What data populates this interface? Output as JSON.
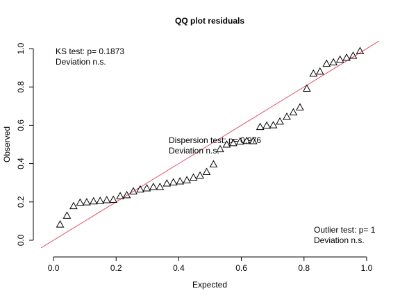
{
  "chart_data": {
    "type": "scatter",
    "title": "QQ plot residuals",
    "xlabel": "Expected",
    "ylabel": "Observed",
    "xlim": [
      -0.04,
      1.04
    ],
    "ylim": [
      -0.04,
      1.04
    ],
    "x_ticks": [
      "0.0",
      "0.2",
      "0.4",
      "0.6",
      "0.8",
      "1.0"
    ],
    "y_ticks": [
      "0.0",
      "0.2",
      "0.4",
      "0.6",
      "0.8",
      "1.0"
    ],
    "marker": "triangle-open",
    "reference_line": {
      "slope": 1,
      "intercept": 0,
      "color": "#DF536B"
    },
    "series": [
      {
        "x": [
          0.021,
          0.043,
          0.064,
          0.085,
          0.106,
          0.128,
          0.149,
          0.17,
          0.191,
          0.213,
          0.234,
          0.255,
          0.277,
          0.298,
          0.319,
          0.34,
          0.362,
          0.383,
          0.404,
          0.426,
          0.447,
          0.468,
          0.489,
          0.511,
          0.532,
          0.553,
          0.574,
          0.596,
          0.617,
          0.638,
          0.66,
          0.681,
          0.702,
          0.723,
          0.745,
          0.766,
          0.787,
          0.809,
          0.83,
          0.851,
          0.872,
          0.894,
          0.915,
          0.936,
          0.957,
          0.979
        ],
        "y": [
          0.082,
          0.128,
          0.178,
          0.196,
          0.198,
          0.203,
          0.205,
          0.209,
          0.211,
          0.23,
          0.235,
          0.255,
          0.265,
          0.271,
          0.278,
          0.278,
          0.296,
          0.302,
          0.307,
          0.313,
          0.327,
          0.337,
          0.356,
          0.396,
          0.475,
          0.499,
          0.507,
          0.515,
          0.518,
          0.517,
          0.591,
          0.598,
          0.6,
          0.619,
          0.644,
          0.667,
          0.693,
          0.791,
          0.869,
          0.88,
          0.921,
          0.928,
          0.942,
          0.952,
          0.963,
          0.987
        ]
      }
    ],
    "annotations": [
      {
        "name": "ks",
        "line1": "KS test: p= 0.1873",
        "line2": "Deviation  n.s."
      },
      {
        "name": "dispersion",
        "line1": "Dispersion test: p= 0.976",
        "line2": "Deviation  n.s."
      },
      {
        "name": "outlier",
        "line1": "Outlier test: p= 1",
        "line2": "Deviation  n.s."
      }
    ]
  }
}
